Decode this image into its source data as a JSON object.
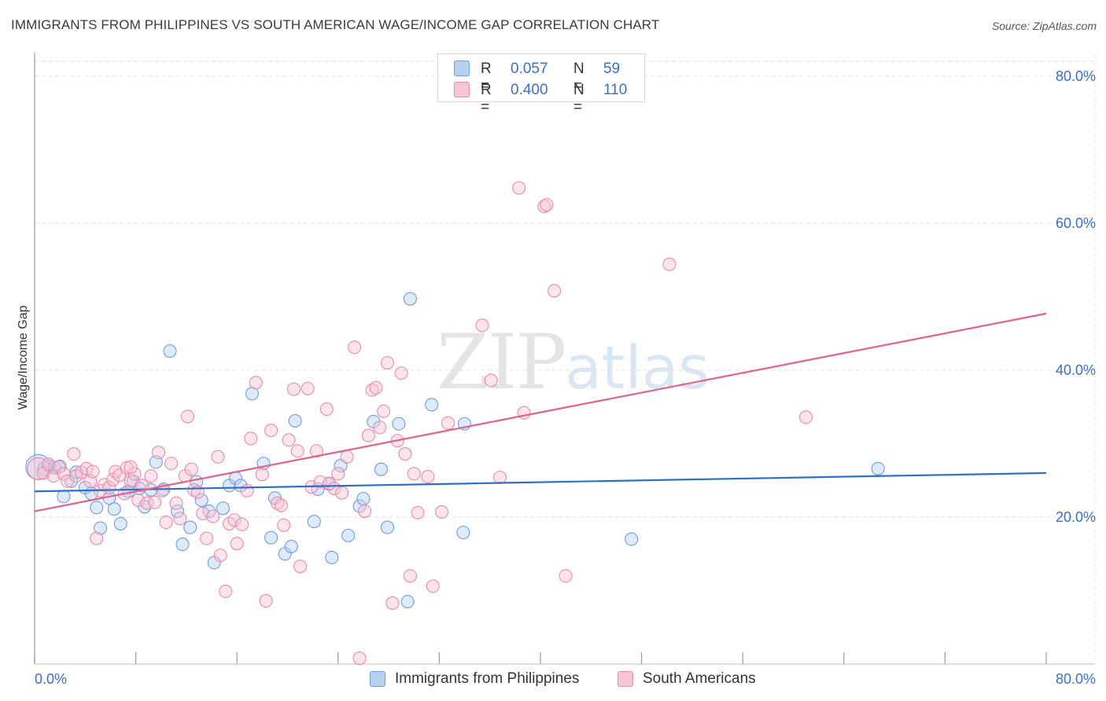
{
  "title": "IMMIGRANTS FROM PHILIPPINES VS SOUTH AMERICAN WAGE/INCOME GAP CORRELATION CHART",
  "source": "Source: ZipAtlas.com",
  "watermark": {
    "zip": "ZIP",
    "atlas": "atlas"
  },
  "legend": {
    "series1": {
      "r_label": "R =",
      "r_value": "0.057",
      "n_label": "N =",
      "n_value": "59"
    },
    "series2": {
      "r_label": "R =",
      "r_value": "0.400",
      "n_label": "N =",
      "n_value": "110"
    }
  },
  "colors": {
    "blue_fill": "#b8d0f0",
    "blue_stroke": "#6b9de0",
    "blue_line": "#2f6fc9",
    "pink_fill": "#f7c6d5",
    "pink_stroke": "#e88aa8",
    "pink_line": "#e0628d",
    "axis_tick_text": "#3a6fc4",
    "grid": "#e2e2e2"
  },
  "chart_data": {
    "type": "scatter",
    "title": "IMMIGRANTS FROM PHILIPPINES VS SOUTH AMERICAN WAGE/INCOME GAP CORRELATION CHART",
    "xlabel": "",
    "ylabel": "Wage/Income Gap",
    "xlim": [
      0,
      80
    ],
    "ylim": [
      0,
      82
    ],
    "x_tick_labels": [
      "0.0%",
      "80.0%"
    ],
    "y_ticks": [
      20,
      40,
      60,
      80
    ],
    "y_tick_labels": [
      "20.0%",
      "40.0%",
      "60.0%",
      "80.0%"
    ],
    "grid": true,
    "series": [
      {
        "name": "Immigrants from Philippines",
        "color": "blue",
        "trend": {
          "x0": 0,
          "y0": 23.5,
          "x1": 80,
          "y1": 26.0
        },
        "points": [
          [
            0.3,
            26.8,
            16
          ],
          [
            0.8,
            26.6,
            9
          ],
          [
            1.2,
            26.9,
            8
          ],
          [
            1.6,
            26.7,
            8
          ],
          [
            2.0,
            26.9,
            8
          ],
          [
            2.3,
            22.8,
            8
          ],
          [
            2.9,
            24.9,
            8
          ],
          [
            3.3,
            26.1,
            8
          ],
          [
            4.0,
            24.0,
            8
          ],
          [
            4.5,
            23.2,
            8
          ],
          [
            4.9,
            21.3,
            8
          ],
          [
            5.2,
            18.5,
            8
          ],
          [
            5.9,
            22.6,
            8
          ],
          [
            6.3,
            21.1,
            8
          ],
          [
            6.8,
            19.1,
            8
          ],
          [
            7.4,
            23.5,
            8
          ],
          [
            7.8,
            24.9,
            8
          ],
          [
            8.3,
            23.9,
            8
          ],
          [
            8.7,
            21.4,
            8
          ],
          [
            9.2,
            23.7,
            8
          ],
          [
            9.6,
            27.5,
            8
          ],
          [
            10.2,
            23.8,
            8
          ],
          [
            10.7,
            42.6,
            8
          ],
          [
            11.3,
            20.8,
            8
          ],
          [
            11.7,
            16.3,
            8
          ],
          [
            12.3,
            18.6,
            8
          ],
          [
            12.8,
            24.8,
            8
          ],
          [
            13.2,
            22.3,
            8
          ],
          [
            13.8,
            20.8,
            8
          ],
          [
            14.2,
            13.8,
            8
          ],
          [
            14.9,
            21.2,
            8
          ],
          [
            15.4,
            24.3,
            8
          ],
          [
            15.9,
            25.3,
            8
          ],
          [
            16.3,
            24.3,
            8
          ],
          [
            17.2,
            36.8,
            8
          ],
          [
            18.1,
            27.3,
            8
          ],
          [
            18.7,
            17.2,
            8
          ],
          [
            19.0,
            22.6,
            8
          ],
          [
            19.8,
            15.0,
            8
          ],
          [
            20.3,
            16.0,
            8
          ],
          [
            20.6,
            33.1,
            8
          ],
          [
            22.1,
            19.4,
            8
          ],
          [
            22.4,
            23.8,
            8
          ],
          [
            23.3,
            24.5,
            8
          ],
          [
            23.5,
            14.5,
            8
          ],
          [
            24.2,
            27.0,
            8
          ],
          [
            24.8,
            17.5,
            8
          ],
          [
            25.7,
            21.5,
            8
          ],
          [
            26.0,
            22.5,
            8
          ],
          [
            26.8,
            33.0,
            8
          ],
          [
            27.4,
            26.5,
            8
          ],
          [
            27.9,
            18.6,
            8
          ],
          [
            28.8,
            32.7,
            8
          ],
          [
            29.7,
            49.7,
            8
          ],
          [
            29.5,
            8.5,
            8
          ],
          [
            31.4,
            35.3,
            8
          ],
          [
            34.0,
            32.7,
            8
          ],
          [
            33.9,
            17.9,
            8
          ],
          [
            47.2,
            17.0,
            8
          ],
          [
            66.7,
            26.6,
            8
          ]
        ]
      },
      {
        "name": "South Americans",
        "color": "pink",
        "trend": {
          "x0": 0,
          "y0": 20.8,
          "x1": 80,
          "y1": 47.7
        },
        "points": [
          [
            0.3,
            26.6,
            14
          ],
          [
            0.7,
            26.0,
            8
          ],
          [
            1.1,
            27.2,
            8
          ],
          [
            1.5,
            25.6,
            8
          ],
          [
            1.9,
            26.8,
            8
          ],
          [
            2.3,
            25.9,
            8
          ],
          [
            2.6,
            24.9,
            8
          ],
          [
            3.1,
            28.6,
            8
          ],
          [
            3.3,
            25.6,
            8
          ],
          [
            3.7,
            26.1,
            8
          ],
          [
            4.1,
            26.6,
            8
          ],
          [
            4.4,
            24.9,
            8
          ],
          [
            4.6,
            26.2,
            8
          ],
          [
            4.9,
            17.1,
            8
          ],
          [
            5.2,
            23.6,
            8
          ],
          [
            5.5,
            24.4,
            8
          ],
          [
            5.9,
            24.0,
            8
          ],
          [
            6.2,
            25.1,
            8
          ],
          [
            6.4,
            26.2,
            8
          ],
          [
            6.7,
            25.7,
            8
          ],
          [
            7.1,
            23.2,
            8
          ],
          [
            7.3,
            26.7,
            8
          ],
          [
            7.6,
            24.9,
            8
          ],
          [
            7.9,
            25.9,
            8
          ],
          [
            8.2,
            22.3,
            8
          ],
          [
            8.5,
            24.3,
            8
          ],
          [
            8.9,
            21.9,
            8
          ],
          [
            9.2,
            25.6,
            8
          ],
          [
            9.5,
            22.0,
            8
          ],
          [
            9.8,
            28.8,
            8
          ],
          [
            10.1,
            23.6,
            8
          ],
          [
            10.4,
            19.3,
            8
          ],
          [
            10.8,
            27.3,
            8
          ],
          [
            11.2,
            21.9,
            8
          ],
          [
            11.5,
            19.8,
            8
          ],
          [
            11.9,
            25.6,
            8
          ],
          [
            12.1,
            33.7,
            8
          ],
          [
            12.4,
            26.5,
            8
          ],
          [
            12.6,
            23.7,
            8
          ],
          [
            12.9,
            23.4,
            8
          ],
          [
            13.3,
            20.5,
            8
          ],
          [
            13.6,
            17.1,
            8
          ],
          [
            14.1,
            20.1,
            8
          ],
          [
            14.5,
            28.2,
            8
          ],
          [
            14.7,
            14.8,
            8
          ],
          [
            15.1,
            9.9,
            8
          ],
          [
            15.4,
            19.1,
            8
          ],
          [
            15.8,
            19.6,
            8
          ],
          [
            16.0,
            16.4,
            8
          ],
          [
            16.4,
            19.0,
            8
          ],
          [
            16.8,
            23.6,
            8
          ],
          [
            17.1,
            30.7,
            8
          ],
          [
            17.5,
            38.3,
            8
          ],
          [
            18.0,
            25.8,
            8
          ],
          [
            18.3,
            8.6,
            8
          ],
          [
            18.7,
            31.8,
            8
          ],
          [
            19.2,
            21.9,
            8
          ],
          [
            19.5,
            21.6,
            8
          ],
          [
            19.7,
            18.9,
            8
          ],
          [
            20.1,
            30.5,
            8
          ],
          [
            20.5,
            37.4,
            8
          ],
          [
            20.8,
            29.0,
            8
          ],
          [
            21.0,
            13.3,
            8
          ],
          [
            21.6,
            37.5,
            8
          ],
          [
            21.9,
            24.1,
            8
          ],
          [
            22.3,
            29.0,
            8
          ],
          [
            22.6,
            24.8,
            8
          ],
          [
            23.1,
            34.7,
            8
          ],
          [
            23.3,
            24.6,
            8
          ],
          [
            23.7,
            23.9,
            8
          ],
          [
            24.0,
            25.9,
            8
          ],
          [
            24.3,
            23.3,
            8
          ],
          [
            24.7,
            28.2,
            8
          ],
          [
            25.3,
            43.1,
            8
          ],
          [
            25.7,
            0.8,
            8
          ],
          [
            26.1,
            20.8,
            8
          ],
          [
            26.4,
            31.1,
            8
          ],
          [
            26.7,
            37.3,
            8
          ],
          [
            27.0,
            37.6,
            8
          ],
          [
            27.3,
            32.2,
            8
          ],
          [
            27.6,
            34.4,
            8
          ],
          [
            27.9,
            41.0,
            8
          ],
          [
            28.3,
            8.3,
            8
          ],
          [
            28.7,
            30.4,
            8
          ],
          [
            29.0,
            39.6,
            8
          ],
          [
            29.3,
            28.6,
            8
          ],
          [
            29.7,
            12.0,
            8
          ],
          [
            30.0,
            25.9,
            8
          ],
          [
            30.3,
            20.6,
            8
          ],
          [
            31.1,
            25.5,
            8
          ],
          [
            31.5,
            10.6,
            8
          ],
          [
            32.2,
            20.7,
            8
          ],
          [
            32.7,
            32.8,
            8
          ],
          [
            35.4,
            46.1,
            8
          ],
          [
            36.1,
            38.6,
            8
          ],
          [
            36.8,
            25.4,
            8
          ],
          [
            38.3,
            64.8,
            8
          ],
          [
            38.7,
            34.2,
            8
          ],
          [
            40.3,
            62.3,
            8
          ],
          [
            40.5,
            62.5,
            8
          ],
          [
            41.1,
            50.8,
            8
          ],
          [
            42.0,
            12.0,
            8
          ],
          [
            50.2,
            54.4,
            8
          ],
          [
            61.0,
            33.6,
            8
          ],
          [
            7.6,
            26.8,
            8
          ]
        ]
      }
    ]
  },
  "bottom_legend": {
    "item1": "Immigrants from Philippines",
    "item2": "South Americans"
  }
}
